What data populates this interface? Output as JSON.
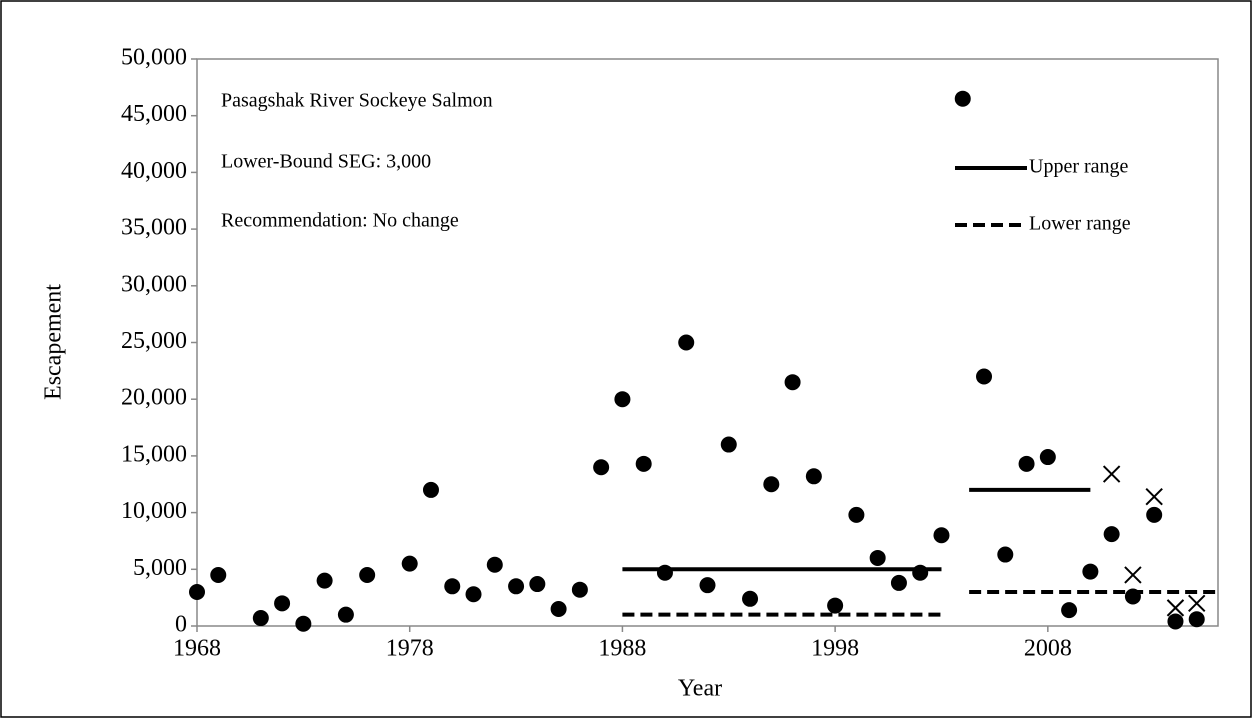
{
  "chart_data": {
    "type": "scatter",
    "xlabel": "Year",
    "ylabel": "Escapement",
    "annotations": [
      "Pasagshak River Sockeye Salmon",
      "Lower-Bound SEG: 3,000",
      "Recommendation: No change"
    ],
    "xlim": [
      1968,
      2016
    ],
    "xticks": [
      1968,
      1978,
      1988,
      1998,
      2008
    ],
    "ylim": [
      0,
      50000
    ],
    "yticks": [
      0,
      {
        "value": 5000,
        "label": "5,000"
      },
      {
        "value": 10000,
        "label": "10,000"
      },
      {
        "value": 15000,
        "label": "15,000"
      },
      {
        "value": 20000,
        "label": "20,000"
      },
      {
        "value": 25000,
        "label": "25,000"
      },
      {
        "value": 30000,
        "label": "30,000"
      },
      {
        "value": 35000,
        "label": "35,000"
      },
      {
        "value": 40000,
        "label": "40,000"
      },
      {
        "value": 45000,
        "label": "45,000"
      },
      {
        "value": 50000,
        "label": "50,000"
      }
    ],
    "legend": "upper right",
    "series": [
      {
        "marker": "circle",
        "color": "#000000",
        "x": [
          1968,
          1969,
          1971,
          1972,
          1973,
          1974,
          1975,
          1976,
          1978,
          1979,
          1980,
          1981,
          1982,
          1983,
          1984,
          1985,
          1986,
          1987,
          1988,
          1989,
          1990,
          1991,
          1992,
          1993,
          1994,
          1995,
          1996,
          1997,
          1998,
          1999,
          2000,
          2001,
          2002,
          2003,
          2004,
          2005,
          2006,
          2007,
          2008,
          2009,
          2010,
          2011,
          2012,
          2013,
          2014,
          2015
        ],
        "values": [
          3000,
          4500,
          700,
          2000,
          200,
          4000,
          1000,
          4500,
          5500,
          12000,
          3500,
          2800,
          5400,
          3500,
          3700,
          1500,
          3200,
          14000,
          20000,
          14300,
          4700,
          25000,
          3600,
          16000,
          2400,
          12500,
          21500,
          13200,
          1800,
          9800,
          6000,
          3800,
          4700,
          8000,
          46500,
          22000,
          6300,
          14300,
          14900,
          1400,
          4800,
          8100,
          2600,
          9800,
          400,
          600
        ]
      },
      {
        "marker": "x",
        "color": "#000000",
        "x": [
          2011,
          2012,
          2013,
          2014,
          2015
        ],
        "values": [
          13400,
          4500,
          11400,
          1600,
          2000
        ]
      },
      {
        "name": "Upper range",
        "line": "solid",
        "color": "#000000",
        "x": [
          1988,
          2003,
          null,
          2004.3,
          2010
        ],
        "values": [
          5000,
          5000,
          null,
          12000,
          12000
        ]
      },
      {
        "name": "Lower range",
        "line": "dashed",
        "color": "#000000",
        "x": [
          1988,
          2003,
          null,
          2004.3,
          2016
        ],
        "values": [
          1000,
          1000,
          null,
          3000,
          3000
        ]
      }
    ]
  }
}
